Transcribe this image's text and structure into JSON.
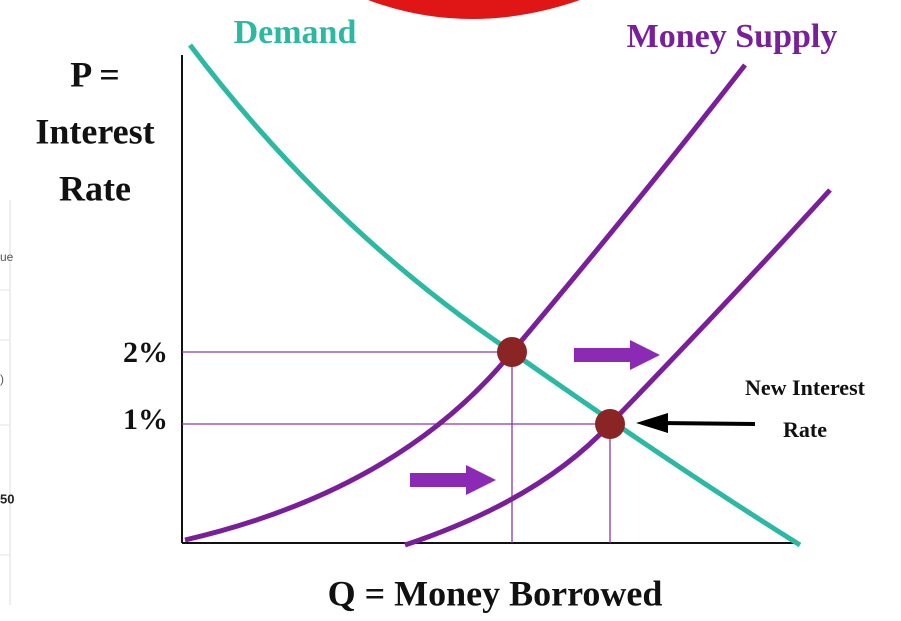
{
  "diagram": {
    "demand_label": "Demand",
    "supply_label": "Money Supply",
    "y_axis_label": [
      "P =",
      "Interest",
      "Rate"
    ],
    "x_axis_label": "Q = Money Borrowed",
    "rate_labels": [
      "2%",
      "1%"
    ],
    "annotation": [
      "New Interest",
      "Rate"
    ],
    "left_fragments": [
      "ue",
      ")",
      "50"
    ]
  }
}
